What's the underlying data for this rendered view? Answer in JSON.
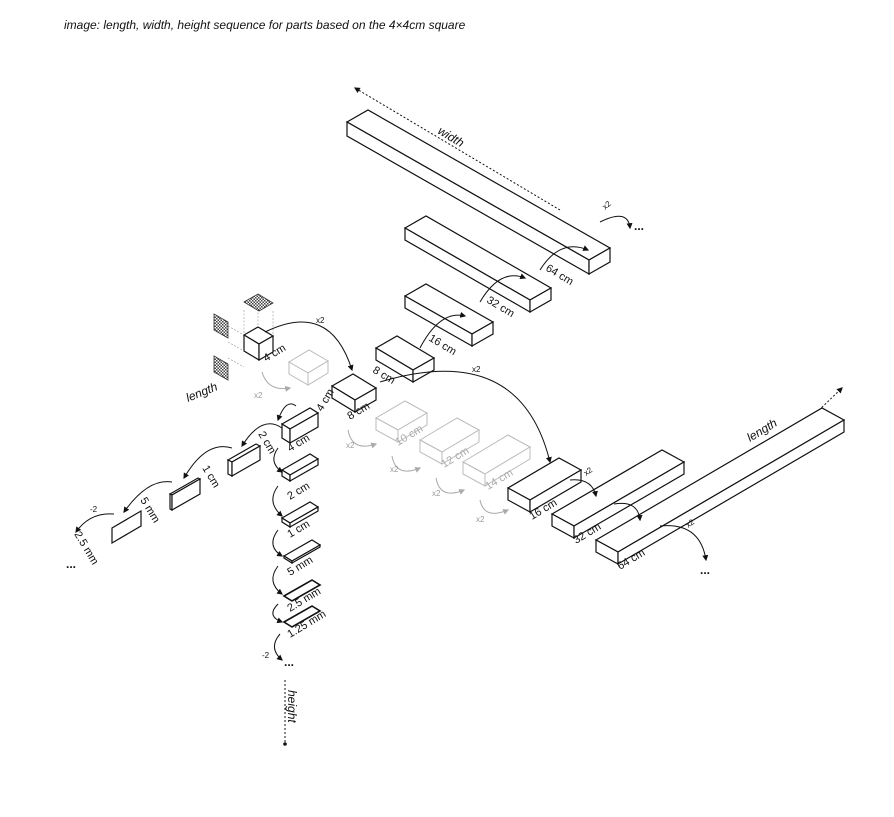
{
  "caption": "image: length, width, height sequence for parts based on the 4×4cm square",
  "axes": {
    "width": "width",
    "length": "length",
    "height": "height",
    "length_left": "length"
  },
  "multipliers": {
    "x2": "x2",
    "div2": "÷2",
    "div2_alt": "-2",
    "cont": "..."
  },
  "width_sequence": [
    "4 cm",
    "8 cm",
    "16 cm",
    "32 cm",
    "64 cm"
  ],
  "length_sequence": [
    "4 cm",
    "8 cm",
    "10 cm",
    "12 cm",
    "14 cm",
    "16 cm",
    "32 cm",
    "64 cm"
  ],
  "length_left_sequence": [
    "4 cm",
    "2 cm",
    "1 cm",
    "5 mm",
    "2.5 mm"
  ],
  "height_sequence": [
    "4 cm",
    "2 cm",
    "1 cm",
    "5 mm",
    "2.5 mm",
    "1.25 mm"
  ],
  "colors": {
    "ink": "#111111",
    "ghost": "#b0b0b0",
    "hatch": "#555555"
  }
}
